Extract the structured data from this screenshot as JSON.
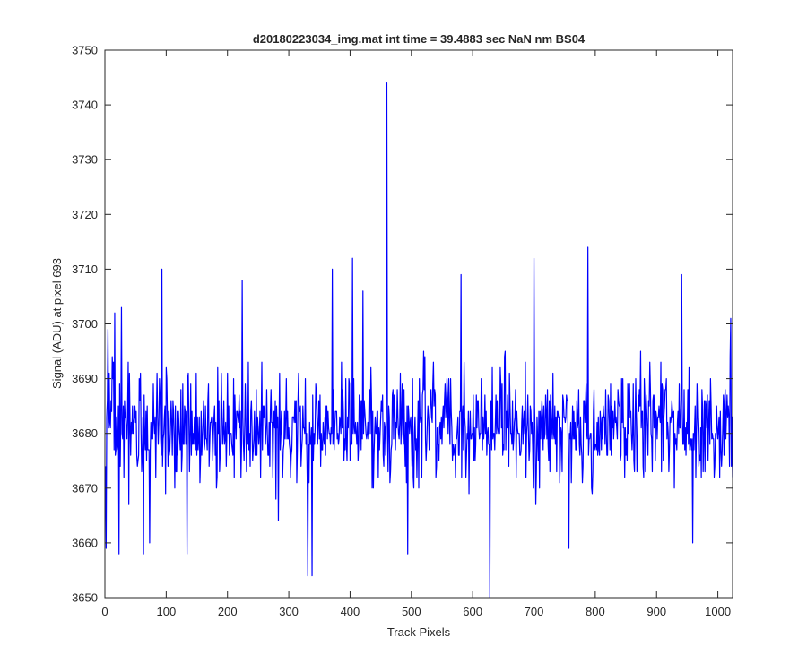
{
  "chart_data": {
    "type": "line",
    "title": "d20180223034_img.mat int time = 39.4883 sec  NaN nm BS04",
    "xlabel": "Track Pixels",
    "ylabel": "Signal (ADU) at pixel 693",
    "xlim": [
      0,
      1024
    ],
    "ylim": [
      3650,
      3750
    ],
    "xticks": [
      0,
      100,
      200,
      300,
      400,
      500,
      600,
      700,
      800,
      900,
      1000
    ],
    "yticks": [
      3650,
      3660,
      3670,
      3680,
      3690,
      3700,
      3710,
      3720,
      3730,
      3740,
      3750
    ],
    "grid": false,
    "line_color": "#0000ff",
    "series": [
      {
        "n_points": 1024,
        "baseline": 3681,
        "typical_spread": [
          3665,
          3700
        ],
        "peaks": [
          {
            "x": 4,
            "y": 3699
          },
          {
            "x": 15,
            "y": 3702
          },
          {
            "x": 26,
            "y": 3703
          },
          {
            "x": 92,
            "y": 3710
          },
          {
            "x": 223,
            "y": 3708
          },
          {
            "x": 370,
            "y": 3710
          },
          {
            "x": 403,
            "y": 3712
          },
          {
            "x": 420,
            "y": 3706
          },
          {
            "x": 459,
            "y": 3744
          },
          {
            "x": 580,
            "y": 3709
          },
          {
            "x": 699,
            "y": 3712
          },
          {
            "x": 787,
            "y": 3714
          },
          {
            "x": 940,
            "y": 3709
          },
          {
            "x": 1020,
            "y": 3701
          }
        ],
        "troughs": [
          {
            "x": 1,
            "y": 3659
          },
          {
            "x": 22,
            "y": 3658
          },
          {
            "x": 62,
            "y": 3658
          },
          {
            "x": 72,
            "y": 3660
          },
          {
            "x": 133,
            "y": 3658
          },
          {
            "x": 282,
            "y": 3664
          },
          {
            "x": 330,
            "y": 3654
          },
          {
            "x": 337,
            "y": 3654
          },
          {
            "x": 493,
            "y": 3658
          },
          {
            "x": 627,
            "y": 3650
          },
          {
            "x": 756,
            "y": 3659
          },
          {
            "x": 958,
            "y": 3660
          }
        ]
      }
    ]
  }
}
